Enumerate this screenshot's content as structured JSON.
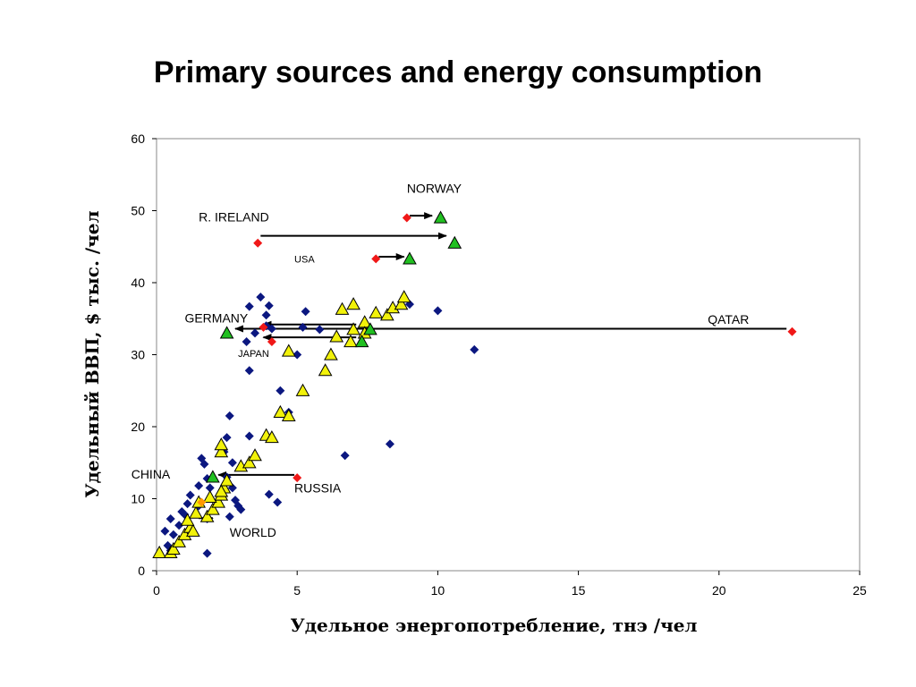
{
  "page": {
    "title": "Primary sources and energy consumption"
  },
  "chart_data": {
    "type": "scatter",
    "title": "",
    "xlabel": "Удельное энергопотребление, тнэ /чел",
    "ylabel": "Удельный ВВП, $ тыс. /чел",
    "xlim": [
      0,
      25
    ],
    "ylim": [
      0,
      60
    ],
    "x_ticks": [
      0,
      5,
      10,
      15,
      20,
      25
    ],
    "y_ticks": [
      0,
      10,
      20,
      30,
      40,
      50,
      60
    ],
    "grid": false,
    "colors": {
      "blue": "#0b1780",
      "yellow": "#f2f20a",
      "green": "#21c021",
      "red": "#f01818",
      "orange": "#ff9900",
      "arrow": "#000000"
    },
    "series": [
      {
        "marker": "diamond",
        "color": "blue",
        "points": [
          [
            0.3,
            5.5
          ],
          [
            0.5,
            7.2
          ],
          [
            0.4,
            3.5
          ],
          [
            0.6,
            5.0
          ],
          [
            0.8,
            6.3
          ],
          [
            0.5,
            2.8
          ],
          [
            0.9,
            8.2
          ],
          [
            1.1,
            9.3
          ],
          [
            1.2,
            10.5
          ],
          [
            1.0,
            7.8
          ],
          [
            1.6,
            15.6
          ],
          [
            1.7,
            14.8
          ],
          [
            1.8,
            12.8
          ],
          [
            1.5,
            11.8
          ],
          [
            1.9,
            11.5
          ],
          [
            1.5,
            9.0
          ],
          [
            1.8,
            7.2
          ],
          [
            1.8,
            2.4
          ],
          [
            2.6,
            21.5
          ],
          [
            2.5,
            18.5
          ],
          [
            2.4,
            16.5
          ],
          [
            2.7,
            15.0
          ],
          [
            2.5,
            13.0
          ],
          [
            2.7,
            11.5
          ],
          [
            2.8,
            9.8
          ],
          [
            2.9,
            9.0
          ],
          [
            3.0,
            8.5
          ],
          [
            2.6,
            7.5
          ],
          [
            3.3,
            18.7
          ],
          [
            3.3,
            27.8
          ],
          [
            3.2,
            31.8
          ],
          [
            3.5,
            33.0
          ],
          [
            3.3,
            36.7
          ],
          [
            3.7,
            38.0
          ],
          [
            3.9,
            34.0
          ],
          [
            3.9,
            35.5
          ],
          [
            4.0,
            36.8
          ],
          [
            4.1,
            33.6
          ],
          [
            4.4,
            25.0
          ],
          [
            4.7,
            22.0
          ],
          [
            4.0,
            10.6
          ],
          [
            4.3,
            9.5
          ],
          [
            5.0,
            30.0
          ],
          [
            5.3,
            36.0
          ],
          [
            5.8,
            33.5
          ],
          [
            5.2,
            33.8
          ],
          [
            6.7,
            16.0
          ],
          [
            8.3,
            17.6
          ],
          [
            9.0,
            37.0
          ],
          [
            10.0,
            36.1
          ],
          [
            11.3,
            30.7
          ]
        ]
      },
      {
        "marker": "triangle",
        "color": "yellow",
        "points": [
          [
            0.1,
            2.5
          ],
          [
            0.5,
            2.5
          ],
          [
            0.6,
            3.0
          ],
          [
            0.8,
            4.0
          ],
          [
            1.0,
            5.0
          ],
          [
            1.2,
            6.0
          ],
          [
            1.3,
            5.5
          ],
          [
            1.1,
            7.0
          ],
          [
            1.4,
            8.0
          ],
          [
            1.5,
            9.5
          ],
          [
            1.8,
            7.5
          ],
          [
            2.0,
            8.5
          ],
          [
            2.2,
            9.5
          ],
          [
            2.3,
            10.5
          ],
          [
            2.4,
            11.5
          ],
          [
            2.5,
            12.5
          ],
          [
            2.3,
            16.5
          ],
          [
            2.3,
            17.5
          ],
          [
            3.0,
            14.5
          ],
          [
            3.3,
            15.0
          ],
          [
            3.5,
            16.0
          ],
          [
            3.9,
            18.8
          ],
          [
            4.1,
            18.5
          ],
          [
            4.4,
            22.0
          ],
          [
            4.7,
            21.5
          ],
          [
            5.2,
            25.0
          ],
          [
            4.7,
            30.5
          ],
          [
            6.0,
            27.8
          ],
          [
            6.2,
            30.0
          ],
          [
            6.4,
            32.5
          ],
          [
            6.6,
            36.3
          ],
          [
            7.0,
            37.0
          ],
          [
            7.0,
            33.5
          ],
          [
            7.4,
            34.5
          ],
          [
            7.8,
            35.8
          ],
          [
            8.2,
            35.5
          ],
          [
            8.4,
            36.5
          ],
          [
            8.7,
            37.0
          ],
          [
            8.8,
            38.0
          ],
          [
            6.9,
            31.8
          ],
          [
            7.4,
            33.0
          ],
          [
            2.3,
            11.0
          ],
          [
            1.9,
            10.2
          ]
        ]
      },
      {
        "marker": "triangle",
        "color": "green",
        "points": [
          [
            2.5,
            33.0
          ],
          [
            2.0,
            13.0
          ],
          [
            7.6,
            33.5
          ],
          [
            7.3,
            31.8
          ],
          [
            9.0,
            43.3
          ],
          [
            10.6,
            45.5
          ],
          [
            10.1,
            49.0
          ]
        ]
      },
      {
        "marker": "diamond",
        "color": "red",
        "points": [
          [
            3.6,
            45.5
          ],
          [
            8.9,
            49.0
          ],
          [
            7.8,
            43.3
          ],
          [
            3.8,
            33.8
          ],
          [
            4.1,
            31.8
          ],
          [
            5.0,
            12.9
          ],
          [
            22.6,
            33.2
          ]
        ]
      },
      {
        "marker": "diamond",
        "color": "orange",
        "points": [
          [
            1.6,
            9.5
          ]
        ]
      }
    ],
    "arrows": [
      {
        "from": [
          3.7,
          46.5
        ],
        "to": [
          10.3,
          46.5
        ]
      },
      {
        "from": [
          9.0,
          49.3
        ],
        "to": [
          9.8,
          49.3
        ]
      },
      {
        "from": [
          7.9,
          43.6
        ],
        "to": [
          8.8,
          43.6
        ]
      },
      {
        "from": [
          22.4,
          33.6
        ],
        "to": [
          2.8,
          33.6
        ]
      },
      {
        "from": [
          7.1,
          34.2
        ],
        "to": [
          3.8,
          34.2
        ]
      },
      {
        "from": [
          7.1,
          32.4
        ],
        "to": [
          3.8,
          32.4
        ]
      },
      {
        "from": [
          4.9,
          13.3
        ],
        "to": [
          2.2,
          13.3
        ]
      },
      {
        "from": [
          1.5,
          7.3
        ],
        "to": [
          2.0,
          7.3
        ]
      }
    ],
    "annotations": [
      {
        "label": "NORWAY",
        "x": 8.9,
        "y": 52.5,
        "size": "normal"
      },
      {
        "label": "R. IRELAND",
        "x": 1.5,
        "y": 48.5,
        "size": "normal"
      },
      {
        "label": "USA",
        "x": 4.9,
        "y": 42.8,
        "size": "small"
      },
      {
        "label": "GERMANY",
        "x": 1.0,
        "y": 34.5,
        "size": "normal"
      },
      {
        "label": "JAPAN",
        "x": 2.9,
        "y": 29.7,
        "size": "small"
      },
      {
        "label": "QATAR",
        "x": 19.6,
        "y": 34.3,
        "size": "normal"
      },
      {
        "label": "CHINA",
        "x": -0.9,
        "y": 12.8,
        "size": "normal"
      },
      {
        "label": "RUSSIA",
        "x": 4.9,
        "y": 10.9,
        "size": "normal"
      },
      {
        "label": "WORLD",
        "x": 2.6,
        "y": 4.7,
        "size": "normal"
      }
    ]
  }
}
